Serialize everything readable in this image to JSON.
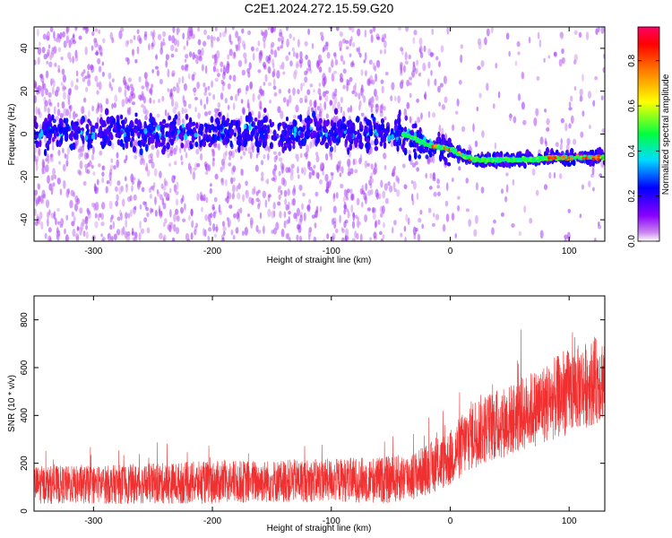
{
  "chart_data": [
    {
      "type": "heatmap",
      "title": "C2E1.2024.272.15.59.G20",
      "xlabel": "Height of straight line (km)",
      "ylabel": "Frequency (Hz)",
      "xlim": [
        -350,
        130
      ],
      "ylim": [
        -50,
        50
      ],
      "xticks": [
        -300,
        -200,
        -100,
        0,
        100
      ],
      "yticks": [
        -40,
        -20,
        0,
        20,
        40
      ],
      "colorbar": {
        "label": "Normalized spectral amplitude",
        "range": [
          0,
          0.95
        ],
        "ticks": [
          "0.0",
          "0.2",
          "0.4",
          "0.6",
          "0.8"
        ],
        "colormap": "rainbow (magenta-blue-cyan-green-yellow-red)"
      },
      "ridge": {
        "points": [
          [
            -350,
            1
          ],
          [
            -300,
            1
          ],
          [
            -200,
            1
          ],
          [
            -100,
            1
          ],
          [
            -60,
            1
          ],
          [
            -40,
            0
          ],
          [
            -30,
            -2
          ],
          [
            -20,
            -5
          ],
          [
            -10,
            -6
          ],
          [
            0,
            -7
          ],
          [
            10,
            -10
          ],
          [
            20,
            -12
          ],
          [
            40,
            -12
          ],
          [
            60,
            -12
          ],
          [
            90,
            -11
          ],
          [
            130,
            -11
          ]
        ],
        "scatter_hz_before_0km": 5,
        "scatter_hz_after_0km": 2
      }
    },
    {
      "type": "line",
      "xlabel": "Height of straight line (km)",
      "ylabel": "SNR (10 * v/v)",
      "xlim": [
        -350,
        130
      ],
      "ylim": [
        0,
        900
      ],
      "xticks": [
        -300,
        -200,
        -100,
        0,
        100
      ],
      "yticks": [
        0,
        200,
        400,
        600,
        800
      ],
      "line_color": "#f03030",
      "trend": {
        "x": [
          -350,
          -300,
          -200,
          -100,
          -50,
          -30,
          0,
          20,
          50,
          100,
          130
        ],
        "mean": [
          110,
          110,
          120,
          130,
          130,
          150,
          220,
          330,
          380,
          500,
          560
        ],
        "spread": [
          80,
          80,
          90,
          90,
          100,
          100,
          120,
          150,
          150,
          180,
          180
        ]
      }
    }
  ]
}
